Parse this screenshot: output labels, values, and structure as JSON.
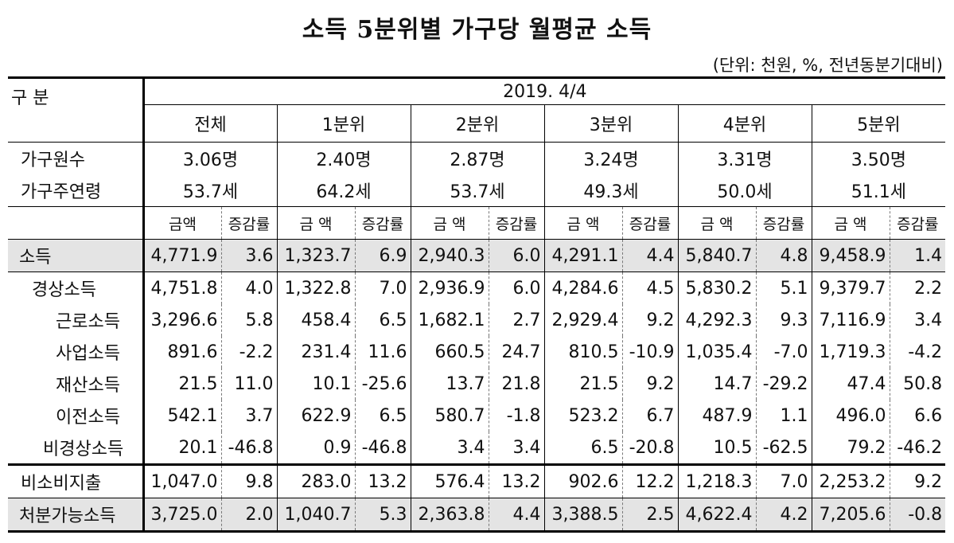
{
  "header": {
    "title": "소득 5분위별 가구당 월평균 소득",
    "unit": "(단위: 천원, %, 전년동분기대비)"
  },
  "table": {
    "corner": "구   분",
    "period": "2019. 4/4",
    "groups": [
      "전체",
      "1분위",
      "2분위",
      "3분위",
      "4분위",
      "5분위"
    ],
    "sub_headers": [
      "금액",
      "증감률",
      "금 액",
      "증감률",
      "금 액",
      "증감률",
      "금 액",
      "증감률",
      "금 액",
      "증감률",
      "금 액",
      "증감률"
    ],
    "household_rows": [
      {
        "label": "가구원수",
        "values": [
          "3.06명",
          "2.40명",
          "2.87명",
          "3.24명",
          "3.31명",
          "3.50명"
        ]
      },
      {
        "label": "가구주연령",
        "values": [
          "53.7세",
          "64.2세",
          "53.7세",
          "49.3세",
          "50.0세",
          "51.1세"
        ]
      }
    ],
    "rows": [
      {
        "label": "소득",
        "values": [
          "4,771.9",
          "3.6",
          "1,323.7",
          "6.9",
          "2,940.3",
          "6.0",
          "4,291.1",
          "4.4",
          "5,840.7",
          "4.8",
          "9,458.9",
          "1.4"
        ]
      },
      {
        "label": "경상소득",
        "values": [
          "4,751.8",
          "4.0",
          "1,322.8",
          "7.0",
          "2,936.9",
          "6.0",
          "4,284.6",
          "4.5",
          "5,830.2",
          "5.1",
          "9,379.7",
          "2.2"
        ]
      },
      {
        "label": "근로소득",
        "values": [
          "3,296.6",
          "5.8",
          "458.4",
          "6.5",
          "1,682.1",
          "2.7",
          "2,929.4",
          "9.2",
          "4,292.3",
          "9.3",
          "7,116.9",
          "3.4"
        ]
      },
      {
        "label": "사업소득",
        "values": [
          "891.6",
          "-2.2",
          "231.4",
          "11.6",
          "660.5",
          "24.7",
          "810.5",
          "-10.9",
          "1,035.4",
          "-7.0",
          "1,719.3",
          "-4.2"
        ]
      },
      {
        "label": "재산소득",
        "values": [
          "21.5",
          "11.0",
          "10.1",
          "-25.6",
          "13.7",
          "21.8",
          "21.5",
          "9.2",
          "14.7",
          "-29.2",
          "47.4",
          "50.8"
        ]
      },
      {
        "label": "이전소득",
        "values": [
          "542.1",
          "3.7",
          "622.9",
          "6.5",
          "580.7",
          "-1.8",
          "523.2",
          "6.7",
          "487.9",
          "1.1",
          "496.0",
          "6.6"
        ]
      },
      {
        "label": "비경상소득",
        "values": [
          "20.1",
          "-46.8",
          "0.9",
          "-46.8",
          "3.4",
          "3.4",
          "6.5",
          "-20.8",
          "10.5",
          "-62.5",
          "79.2",
          "-46.2"
        ]
      },
      {
        "label": "비소비지출",
        "values": [
          "1,047.0",
          "9.8",
          "283.0",
          "13.2",
          "576.4",
          "13.2",
          "902.6",
          "12.2",
          "1,218.3",
          "7.0",
          "2,253.2",
          "9.2"
        ]
      },
      {
        "label": "처분가능소득",
        "values": [
          "3,725.0",
          "2.0",
          "1,040.7",
          "5.3",
          "2,363.8",
          "4.4",
          "3,388.5",
          "2.5",
          "4,622.4",
          "4.2",
          "7,205.6",
          "-0.8"
        ]
      }
    ]
  }
}
